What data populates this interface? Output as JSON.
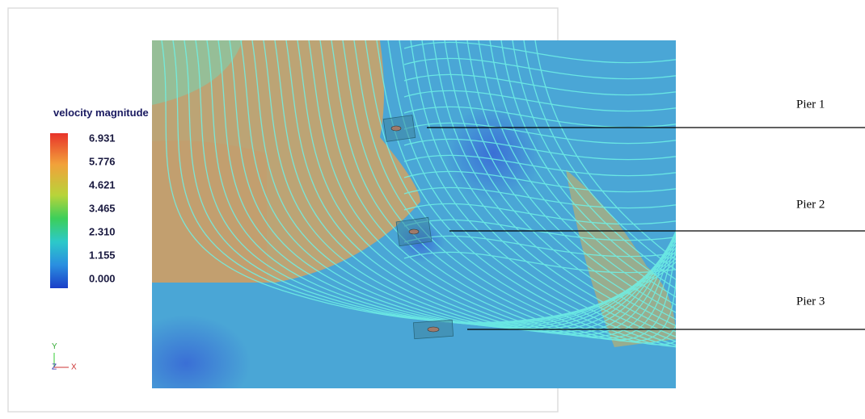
{
  "legend": {
    "title": "velocity magnitude",
    "ticks": [
      "6.931",
      "5.776",
      "4.621",
      "3.465",
      "2.310",
      "1.155",
      "0.000"
    ]
  },
  "axes_triad": {
    "y": "Y",
    "z": "Z",
    "x": "X"
  },
  "annotations": [
    "Pier 1",
    "Pier 2",
    "Pier 3"
  ]
}
